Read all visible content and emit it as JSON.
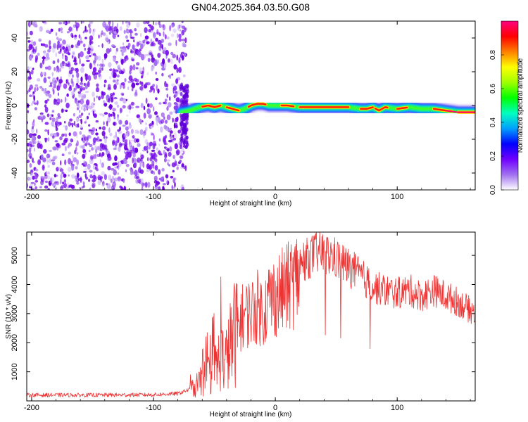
{
  "title": "GN04.2025.364.03.50.G08",
  "chart_data": [
    {
      "type": "heatmap",
      "xlabel": "Height of straight line (km)",
      "ylabel": "Frequency (Hz)",
      "xlim": [
        -204,
        164
      ],
      "ylim": [
        -50,
        50
      ],
      "xticks": [
        -200,
        -100,
        0,
        100
      ],
      "xtick_labels": [
        "-200",
        "-100",
        "0",
        "100"
      ],
      "yticks": [
        -40,
        -20,
        0,
        20,
        40
      ],
      "ytick_labels": [
        "-40",
        "-20",
        "0",
        "20",
        "40"
      ],
      "noise_region": [
        -204,
        -73
      ],
      "ridge": {
        "x": [
          -77,
          -70,
          -62,
          -55,
          -50,
          -45,
          -40,
          -35,
          -30,
          -25,
          -20,
          -15,
          -10,
          -5,
          0,
          10,
          20,
          40,
          60,
          70,
          75,
          80,
          85,
          90,
          100,
          110,
          120,
          130,
          140,
          150,
          164
        ],
        "y": [
          -4,
          -3,
          -1,
          0,
          -1,
          0,
          -1,
          -2,
          -3,
          -2,
          0,
          1,
          1,
          0,
          0,
          0,
          -1,
          -1,
          -1,
          -2,
          -2,
          -1,
          -3,
          -1,
          -2,
          -1,
          -2,
          -2,
          -3,
          -4,
          -4
        ]
      },
      "colorbar": {
        "label": "Normalized spectral amplitude",
        "range": [
          0,
          1
        ],
        "ticks": [
          0.0,
          0.2,
          0.4,
          0.6,
          0.8
        ],
        "tick_labels": [
          "0.0",
          "0.2",
          "0.4",
          "0.6",
          "0.8"
        ],
        "colors": [
          "#ffffff",
          "#a070f0",
          "#7000ff",
          "#0000ff",
          "#00a0ff",
          "#00ffc0",
          "#00ff00",
          "#a0ff00",
          "#ffff00",
          "#ff8000",
          "#ff0000",
          "#ff0080"
        ]
      }
    },
    {
      "type": "line",
      "xlabel": "Height of straight line (km)",
      "ylabel": "SNR (10 * v/v)",
      "xlim": [
        -204,
        164
      ],
      "ylim": [
        0,
        5800
      ],
      "xticks": [
        -200,
        -100,
        0,
        100
      ],
      "xtick_labels": [
        "-200",
        "-100",
        "0",
        "100"
      ],
      "yticks": [
        1000,
        2000,
        3000,
        4000,
        5000
      ],
      "ytick_labels": [
        "1000",
        "2000",
        "3000",
        "4000",
        "5000"
      ],
      "color": "#ee3333",
      "envelope": {
        "x": [
          -204,
          -150,
          -100,
          -80,
          -70,
          -60,
          -50,
          -45,
          -40,
          -35,
          -30,
          -25,
          -20,
          -15,
          -10,
          -5,
          0,
          10,
          20,
          30,
          35,
          40,
          50,
          60,
          70,
          80,
          90,
          100,
          110,
          120,
          130,
          140,
          150,
          164
        ],
        "y": [
          200,
          200,
          210,
          250,
          400,
          800,
          1300,
          1800,
          1700,
          2600,
          3000,
          3200,
          3300,
          3500,
          3300,
          3800,
          3900,
          4200,
          4700,
          5000,
          5100,
          5050,
          4900,
          4600,
          4300,
          3900,
          3800,
          3700,
          3800,
          3600,
          3800,
          3600,
          3400,
          3000
        ]
      }
    }
  ]
}
